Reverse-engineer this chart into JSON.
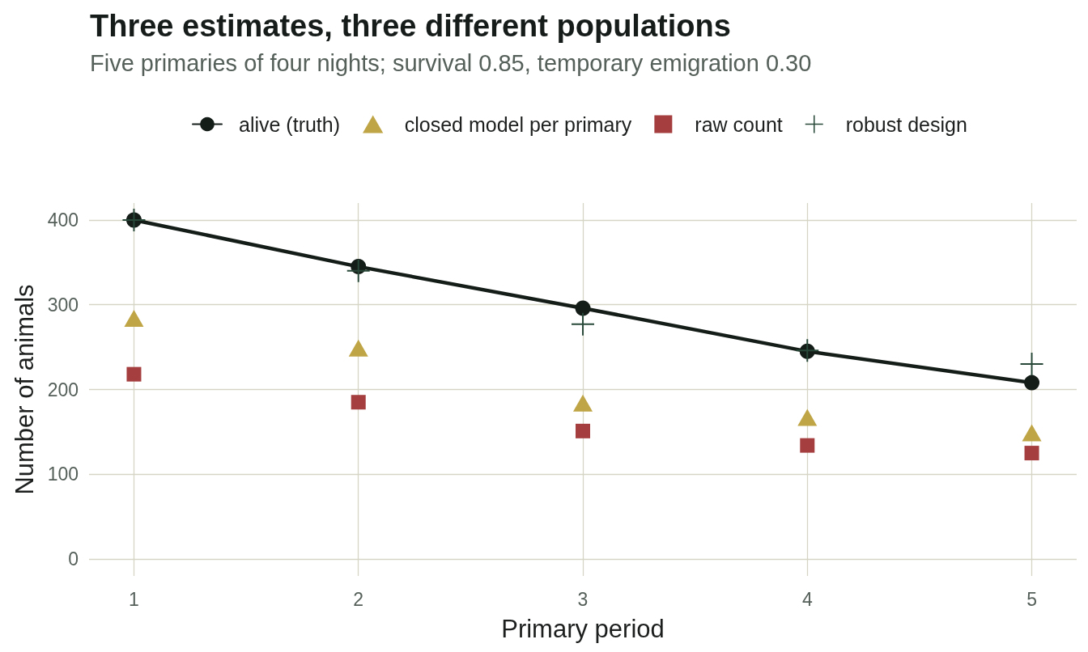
{
  "chart_data": {
    "type": "line",
    "title": "Three estimates, three different populations",
    "subtitle": "Five primaries of four nights; survival 0.85, temporary emigration 0.30",
    "xlabel": "Primary period",
    "ylabel": "Number of animals",
    "x": [
      1,
      2,
      3,
      4,
      5
    ],
    "xlim": [
      0.8,
      5.2
    ],
    "xticks": [
      1,
      2,
      3,
      4,
      5
    ],
    "ylim": [
      -20,
      420
    ],
    "yticks": [
      0,
      100,
      200,
      300,
      400
    ],
    "grid": true,
    "legend": "top",
    "series": [
      {
        "name": "alive (truth)",
        "color": "#151d18",
        "marker": "circle",
        "line_style": "solid",
        "values": [
          400,
          345,
          296,
          245,
          208
        ]
      },
      {
        "name": "closed model per primary",
        "type": "scatter",
        "color": "#bfa545",
        "marker": "triangle",
        "values": [
          284,
          249,
          184,
          167,
          149
        ]
      },
      {
        "name": "raw count",
        "type": "scatter",
        "color": "#a53f3f",
        "marker": "square",
        "values": [
          218,
          185,
          151,
          134,
          125
        ]
      },
      {
        "name": "robust design",
        "type": "scatter",
        "color": "#28493a",
        "marker": "cross",
        "values": [
          400,
          340,
          277,
          246,
          230
        ]
      }
    ]
  }
}
